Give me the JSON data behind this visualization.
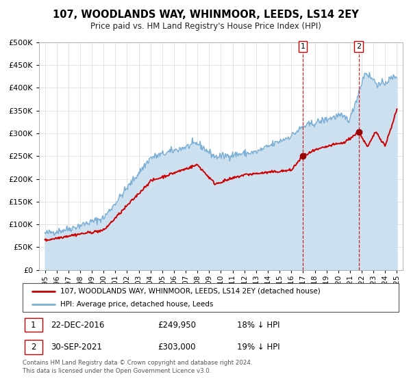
{
  "title": "107, WOODLANDS WAY, WHINMOOR, LEEDS, LS14 2EY",
  "subtitle": "Price paid vs. HM Land Registry's House Price Index (HPI)",
  "legend_line1": "107, WOODLANDS WAY, WHINMOOR, LEEDS, LS14 2EY (detached house)",
  "legend_line2": "HPI: Average price, detached house, Leeds",
  "annotation1_label": "1",
  "annotation1_date": "22-DEC-2016",
  "annotation1_price": "£249,950",
  "annotation1_hpi": "18% ↓ HPI",
  "annotation2_label": "2",
  "annotation2_date": "30-SEP-2021",
  "annotation2_price": "£303,000",
  "annotation2_hpi": "19% ↓ HPI",
  "footer": "Contains HM Land Registry data © Crown copyright and database right 2024.\nThis data is licensed under the Open Government Licence v3.0.",
  "red_color": "#cc0000",
  "blue_color": "#7aaed4",
  "blue_fill": "#cce0f0",
  "marker1_x": 2016.97,
  "marker1_y": 249950,
  "marker2_x": 2021.75,
  "marker2_y": 303000,
  "vline1_x": 2016.97,
  "vline2_x": 2021.75,
  "ylim": [
    0,
    500000
  ],
  "xlim": [
    1994.5,
    2025.5
  ]
}
